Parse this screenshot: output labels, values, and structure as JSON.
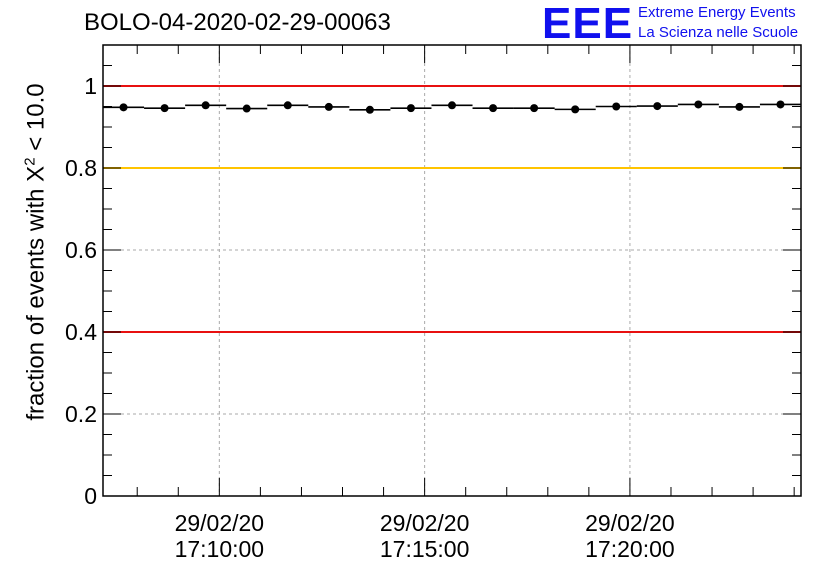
{
  "header": {
    "run_title": "BOLO-04-2020-02-29-00063",
    "logo_mark": "EEE",
    "logo_line1": "Extreme Energy Events",
    "logo_line2": "La Scienza nelle Scuole"
  },
  "chart_data": {
    "type": "scatter",
    "title": "BOLO-04-2020-02-29-00063",
    "ylabel_prefix": "fraction of events with",
    "ylabel_symbol": "X",
    "ylabel_superscript": "2",
    "ylabel_suffix": "< 10.0",
    "xlabel": "",
    "ylim": [
      0,
      1.1
    ],
    "yticks": [
      0,
      0.2,
      0.4,
      0.6,
      0.8,
      1
    ],
    "ytick_labels": [
      "0",
      "0.2",
      "0.4",
      "0.6",
      "0.8",
      "1"
    ],
    "xlim": [
      "29/02/20 17:07:10",
      "29/02/20 17:24:10"
    ],
    "xticks": [
      {
        "date": "29/02/20",
        "time": "17:10:00"
      },
      {
        "date": "29/02/20",
        "time": "17:15:00"
      },
      {
        "date": "29/02/20",
        "time": "17:20:00"
      }
    ],
    "grid": true,
    "reference_lines": [
      {
        "y": 1.0,
        "color": "#e81010"
      },
      {
        "y": 0.8,
        "color": "#ffc400"
      },
      {
        "y": 0.4,
        "color": "#e81010"
      }
    ],
    "points": [
      {
        "x": "17:07:40",
        "y": 0.948
      },
      {
        "x": "17:08:40",
        "y": 0.946
      },
      {
        "x": "17:09:40",
        "y": 0.953
      },
      {
        "x": "17:10:40",
        "y": 0.945
      },
      {
        "x": "17:11:40",
        "y": 0.953
      },
      {
        "x": "17:12:40",
        "y": 0.949
      },
      {
        "x": "17:13:40",
        "y": 0.942
      },
      {
        "x": "17:14:40",
        "y": 0.946
      },
      {
        "x": "17:15:40",
        "y": 0.953
      },
      {
        "x": "17:16:40",
        "y": 0.946
      },
      {
        "x": "17:17:40",
        "y": 0.946
      },
      {
        "x": "17:18:40",
        "y": 0.943
      },
      {
        "x": "17:19:40",
        "y": 0.95
      },
      {
        "x": "17:20:40",
        "y": 0.951
      },
      {
        "x": "17:21:40",
        "y": 0.955
      },
      {
        "x": "17:22:40",
        "y": 0.949
      },
      {
        "x": "17:23:40",
        "y": 0.955
      }
    ],
    "bin_width_seconds": 60,
    "colors": {
      "marker": "#000000",
      "grid": "#aaaaaa",
      "axis": "#000000"
    }
  }
}
